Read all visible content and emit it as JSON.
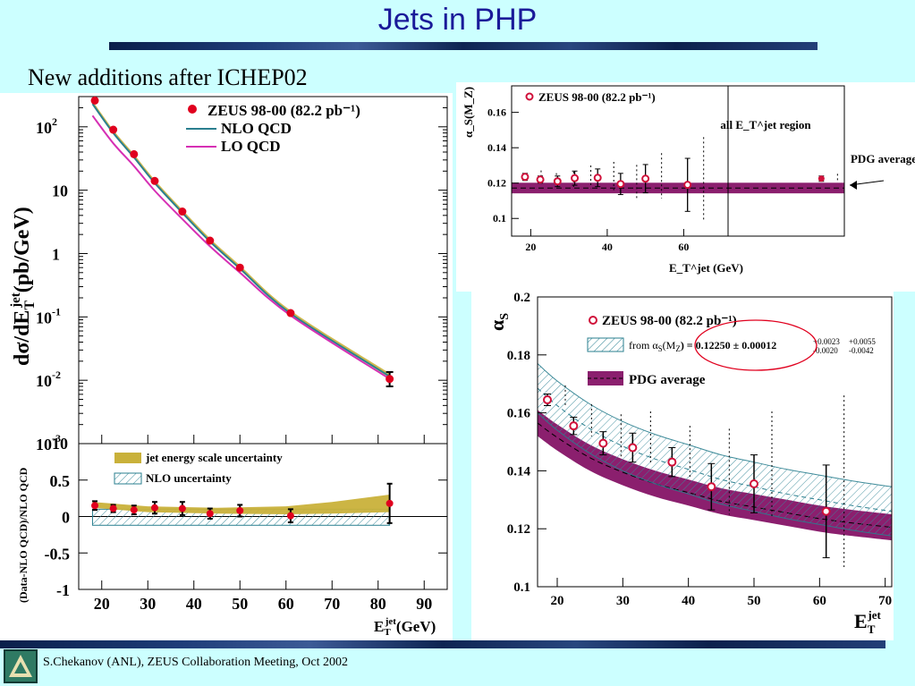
{
  "slide": {
    "title": "Jets in PHP",
    "subtitle": "New additions after ICHEP02",
    "footer": "S.Chekanov (ANL), ZEUS Collaboration Meeting, Oct 2002",
    "colors": {
      "background": "#ccffff",
      "title": "#1a1a99"
    }
  },
  "chart_data": [
    {
      "id": "cross-section",
      "type": "line",
      "ylabel": "dσ/dE_T^jet (pb/GeV)",
      "yscale": "log",
      "ylim": [
        0.001,
        300
      ],
      "xlim": [
        15,
        95
      ],
      "ytick_labels": [
        {
          "v": 100,
          "b": "10",
          "e": "2"
        },
        {
          "v": 10,
          "b": "10",
          "e": ""
        },
        {
          "v": 1,
          "b": "1",
          "e": ""
        },
        {
          "v": 0.1,
          "b": "10",
          "e": "-1"
        },
        {
          "v": 0.01,
          "b": "10",
          "e": "-2"
        },
        {
          "v": 0.001,
          "b": "10",
          "e": "-3"
        }
      ],
      "legend": [
        "ZEUS 98-00 (82.2 pb⁻¹)",
        "NLO QCD",
        "LO QCD"
      ],
      "series": [
        {
          "name": "ZEUS 98-00 (82.2 pb⁻¹)",
          "color": "#e0001e",
          "x": [
            18.5,
            22.5,
            27,
            31.5,
            37.5,
            43.5,
            50,
            61,
            82.5
          ],
          "y": [
            260,
            90,
            37,
            14,
            4.6,
            1.6,
            0.6,
            0.115,
            0.0105
          ],
          "err_up": [
            0,
            0,
            0,
            0,
            0,
            0,
            0,
            0,
            0.003
          ],
          "err_dn": [
            0,
            0,
            0,
            0,
            0,
            0,
            0,
            0,
            0.0025
          ]
        },
        {
          "name": "NLO QCD",
          "color": "#2a7f8f",
          "x": [
            18,
            22.5,
            27,
            31.5,
            37.5,
            43.5,
            50,
            61,
            82.5
          ],
          "y": [
            230,
            80,
            33,
            13,
            4.4,
            1.55,
            0.58,
            0.113,
            0.0115
          ]
        },
        {
          "name": "LO QCD",
          "color": "#d62fb4",
          "x": [
            18,
            22.5,
            27,
            31.5,
            37.5,
            43.5,
            50,
            61,
            82.5
          ],
          "y": [
            150,
            55,
            24,
            9.8,
            3.5,
            1.3,
            0.5,
            0.105,
            0.0105
          ]
        }
      ]
    },
    {
      "id": "ratio",
      "type": "line",
      "ylabel": "(Data-NLO QCD)/NLO QCD",
      "xlabel": "E_T^jet (GeV)",
      "xlim": [
        15,
        95
      ],
      "ylim": [
        -1,
        1
      ],
      "xticks": [
        20,
        30,
        40,
        50,
        60,
        70,
        80,
        90
      ],
      "yticks": [
        -1,
        -0.5,
        0,
        0.5
      ],
      "legend": [
        "jet energy scale uncertainty",
        "NLO uncertainty"
      ],
      "series": [
        {
          "name": "Data",
          "color": "#e0001e",
          "x": [
            18.5,
            22.5,
            27,
            31.5,
            37.5,
            43.5,
            50,
            61,
            82.5
          ],
          "y": [
            0.15,
            0.11,
            0.09,
            0.12,
            0.11,
            0.04,
            0.08,
            0.01,
            0.18
          ],
          "err": [
            0.06,
            0.05,
            0.06,
            0.08,
            0.09,
            0.07,
            0.08,
            0.09,
            0.27
          ]
        }
      ],
      "bands": {
        "jet_energy_scale": {
          "x": [
            18,
            30,
            45,
            60,
            70,
            82.5
          ],
          "lo": [
            0.12,
            0.06,
            0.04,
            0.03,
            0.04,
            0.06
          ],
          "hi": [
            0.2,
            0.14,
            0.12,
            0.14,
            0.2,
            0.3
          ]
        },
        "nlo": {
          "x": [
            18,
            82.5
          ],
          "lo": [
            -0.12,
            -0.12
          ],
          "hi": [
            0.1,
            0.1
          ]
        }
      }
    },
    {
      "id": "alphas-mz",
      "type": "scatter",
      "ylabel": "α_S(M_Z)",
      "xlabel": "E_T^jet (GeV)",
      "xlim": [
        15,
        102
      ],
      "ylim": [
        0.09,
        0.175
      ],
      "xticks": [
        20,
        40,
        60
      ],
      "yticks": [
        0.1,
        0.12,
        0.14,
        0.16
      ],
      "legend": [
        "ZEUS 98-00 (82.2 pb⁻¹)"
      ],
      "annotations": [
        "all E_T^jet region",
        "PDG average"
      ],
      "pdg_band": {
        "center": 0.1172,
        "lo": 0.1142,
        "hi": 0.1202
      },
      "series": [
        {
          "name": "ZEUS 98-00 (82.2 pb⁻¹)",
          "color": "#d0103a",
          "x": [
            18.5,
            22.5,
            27,
            31.5,
            37.5,
            43.5,
            50,
            61,
            96
          ],
          "y": [
            0.1235,
            0.122,
            0.121,
            0.1228,
            0.123,
            0.1195,
            0.1225,
            0.119,
            0.1225
          ],
          "err": [
            0.002,
            0.002,
            0.003,
            0.004,
            0.005,
            0.006,
            0.008,
            0.015,
            0.0015
          ]
        }
      ]
    },
    {
      "id": "alphas-running",
      "type": "line",
      "ylabel": "α_S",
      "xlabel": "E_T^jet",
      "xlim": [
        17,
        71
      ],
      "ylim": [
        0.1,
        0.2
      ],
      "xticks": [
        20,
        30,
        40,
        50,
        60,
        70
      ],
      "yticks": [
        0.1,
        0.12,
        0.14,
        0.16,
        0.18,
        0.2
      ],
      "legend": [
        "ZEUS 98-00 (82.2 pb⁻¹)",
        "from α_S(M_Z) = 0.12250 ± 0.00012",
        "PDG average"
      ],
      "fit_text": {
        "prefix": "from α",
        "sub": "S",
        "mid": "(M",
        "sub2": "Z",
        "value": ") = 0.12250 ± 0.00012",
        "stat_up": "+0.0023",
        "stat_dn": "-0.0020",
        "th_up": "+0.0055",
        "th_dn": "-0.0042"
      },
      "series": [
        {
          "name": "ZEUS 98-00 (82.2 pb⁻¹)",
          "color": "#d0103a",
          "x": [
            18.5,
            22.5,
            27,
            31.5,
            37.5,
            43.5,
            50,
            61
          ],
          "y": [
            0.1645,
            0.1555,
            0.1495,
            0.148,
            0.143,
            0.1345,
            0.1355,
            0.126
          ],
          "err": [
            0.002,
            0.003,
            0.004,
            0.005,
            0.005,
            0.008,
            0.01,
            0.016
          ]
        },
        {
          "name": "from α_S(M_Z)",
          "x": [
            17,
            20,
            25,
            30,
            35,
            40,
            45,
            50,
            55,
            60,
            65,
            71
          ],
          "center": [
            0.1685,
            0.1625,
            0.1545,
            0.1485,
            0.144,
            0.1405,
            0.137,
            0.1345,
            0.132,
            0.13,
            0.128,
            0.126
          ],
          "half": 0.0085
        },
        {
          "name": "PDG average",
          "x": [
            17,
            20,
            25,
            30,
            35,
            40,
            45,
            50,
            55,
            60,
            65,
            71
          ],
          "center": [
            0.1565,
            0.1515,
            0.1445,
            0.1395,
            0.1355,
            0.1325,
            0.1295,
            0.1275,
            0.1255,
            0.1235,
            0.122,
            0.1205
          ],
          "half": 0.0045
        }
      ]
    }
  ]
}
